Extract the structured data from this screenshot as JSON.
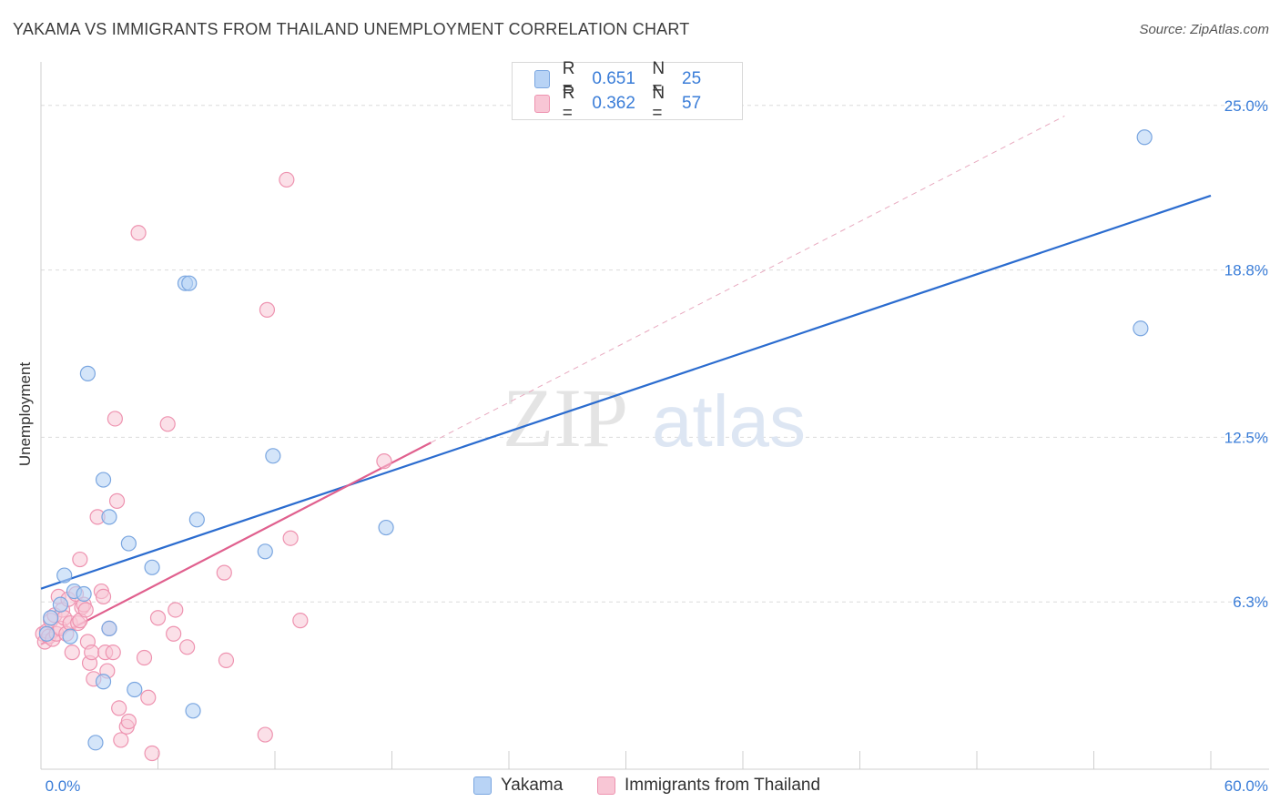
{
  "title": "YAKAMA VS IMMIGRANTS FROM THAILAND UNEMPLOYMENT CORRELATION CHART",
  "source": "Source: ZipAtlas.com",
  "watermark": {
    "zip": "ZIP",
    "atlas": "atlas"
  },
  "legend": {
    "r_label": "R =",
    "n_label": "N =",
    "series": [
      {
        "name": "Yakama",
        "r": "0.651",
        "n": "25"
      },
      {
        "name": "Immigrants from Thailand",
        "r": "0.362",
        "n": "57"
      }
    ]
  },
  "colors": {
    "yakama_fill": "#b8d3f5",
    "yakama_stroke": "#7aa6e0",
    "yakama_line": "#2b6ccf",
    "thai_fill": "#f8c6d5",
    "thai_stroke": "#ee93b0",
    "thai_line": "#e0608e",
    "tick_label": "#3a7dd8",
    "grid": "#dcdcdc"
  },
  "chart_data": {
    "type": "scatter",
    "title": "YAKAMA VS IMMIGRANTS FROM THAILAND UNEMPLOYMENT CORRELATION CHART",
    "xlabel": "",
    "ylabel": "Unemployment",
    "xlim": [
      0,
      60
    ],
    "ylim": [
      0,
      26.5
    ],
    "x_tick_labels": [
      "0.0%",
      "60.0%"
    ],
    "y_ticks": [
      6.3,
      12.5,
      18.8,
      25.0
    ],
    "y_tick_labels": [
      "6.3%",
      "12.5%",
      "18.8%",
      "25.0%"
    ],
    "grid": true,
    "legend_position": "top-center",
    "series": [
      {
        "name": "Yakama",
        "points": [
          [
            0.5,
            5.7
          ],
          [
            1.0,
            6.2
          ],
          [
            1.2,
            7.3
          ],
          [
            1.5,
            5.0
          ],
          [
            1.7,
            6.7
          ],
          [
            2.2,
            6.6
          ],
          [
            2.4,
            14.9
          ],
          [
            2.8,
            1.0
          ],
          [
            3.2,
            3.3
          ],
          [
            3.2,
            10.9
          ],
          [
            3.5,
            9.5
          ],
          [
            3.5,
            5.3
          ],
          [
            4.5,
            8.5
          ],
          [
            4.8,
            3.0
          ],
          [
            5.7,
            7.6
          ],
          [
            7.4,
            18.3
          ],
          [
            7.6,
            18.3
          ],
          [
            7.8,
            2.2
          ],
          [
            8.0,
            9.4
          ],
          [
            11.5,
            8.2
          ],
          [
            11.9,
            11.8
          ],
          [
            17.7,
            9.1
          ],
          [
            56.6,
            23.8
          ],
          [
            56.4,
            16.6
          ],
          [
            0.3,
            5.1
          ]
        ],
        "trend": {
          "x": [
            0,
            60
          ],
          "y": [
            6.8,
            21.6
          ]
        }
      },
      {
        "name": "Immigrants from Thailand",
        "points": [
          [
            0.1,
            5.1
          ],
          [
            0.2,
            4.8
          ],
          [
            0.3,
            5.2
          ],
          [
            0.4,
            5.0
          ],
          [
            0.5,
            5.6
          ],
          [
            0.6,
            4.9
          ],
          [
            0.7,
            5.8
          ],
          [
            0.8,
            5.1
          ],
          [
            0.9,
            6.5
          ],
          [
            1.0,
            5.3
          ],
          [
            1.1,
            6.0
          ],
          [
            1.2,
            5.7
          ],
          [
            1.3,
            5.1
          ],
          [
            1.4,
            6.4
          ],
          [
            1.5,
            5.5
          ],
          [
            1.6,
            4.4
          ],
          [
            1.8,
            6.6
          ],
          [
            1.9,
            5.5
          ],
          [
            2.0,
            5.6
          ],
          [
            2.1,
            6.1
          ],
          [
            2.2,
            6.2
          ],
          [
            2.3,
            6.0
          ],
          [
            2.4,
            4.8
          ],
          [
            2.5,
            4.0
          ],
          [
            2.6,
            4.4
          ],
          [
            2.7,
            3.4
          ],
          [
            2.9,
            9.5
          ],
          [
            3.1,
            6.7
          ],
          [
            3.2,
            6.5
          ],
          [
            3.3,
            4.4
          ],
          [
            3.4,
            3.7
          ],
          [
            3.5,
            5.3
          ],
          [
            3.7,
            4.4
          ],
          [
            3.8,
            13.2
          ],
          [
            3.9,
            10.1
          ],
          [
            4.0,
            2.3
          ],
          [
            4.1,
            1.1
          ],
          [
            4.4,
            1.6
          ],
          [
            4.5,
            1.8
          ],
          [
            5.0,
            20.2
          ],
          [
            5.3,
            4.2
          ],
          [
            5.5,
            2.7
          ],
          [
            5.7,
            0.6
          ],
          [
            6.0,
            5.7
          ],
          [
            6.5,
            13.0
          ],
          [
            6.8,
            5.1
          ],
          [
            6.9,
            6.0
          ],
          [
            7.5,
            4.6
          ],
          [
            9.4,
            7.4
          ],
          [
            9.5,
            4.1
          ],
          [
            11.5,
            1.3
          ],
          [
            11.6,
            17.3
          ],
          [
            12.6,
            22.2
          ],
          [
            12.8,
            8.7
          ],
          [
            13.3,
            5.6
          ],
          [
            17.6,
            11.6
          ],
          [
            2.0,
            7.9
          ]
        ],
        "trend": {
          "x": [
            0,
            20
          ],
          "y": [
            4.7,
            12.3
          ]
        },
        "trend_extension": {
          "x": [
            20,
            52.5
          ],
          "y": [
            12.3,
            24.6
          ]
        }
      }
    ]
  }
}
